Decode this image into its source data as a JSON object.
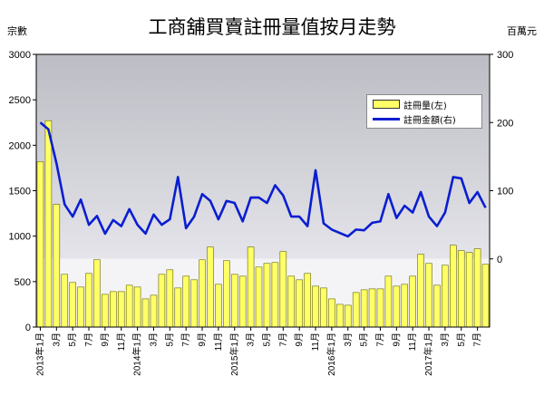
{
  "title": "工商舖買賣註冊量值按月走勢",
  "unit_left": "宗數",
  "unit_right": "百萬元",
  "colors": {
    "bar": "#ffff66",
    "bar_edge": "#666600",
    "line": "#0a1ed0",
    "band_top": "#bcbcc4",
    "band_mid": "#e4e4ea",
    "band_low": "#f4f4f6"
  },
  "legend": {
    "bar_label": "註冊量(左)",
    "line_label": "註冊金額(右)",
    "placement": "top-right"
  },
  "chart_data": {
    "type": "bar",
    "title": "工商舖買賣註冊量值按月走勢",
    "grid": false,
    "x_tick_labels": [
      "2013年1月",
      "3月",
      "5月",
      "7月",
      "9月",
      "11月",
      "2014年1月",
      "3月",
      "5月",
      "7月",
      "9月",
      "11月",
      "2015年1月",
      "3月",
      "5月",
      "7月",
      "9月",
      "11月",
      "2016年1月",
      "3月",
      "5月",
      "7月",
      "9月",
      "11月",
      "2017年1月",
      "3月",
      "5月",
      "7月"
    ],
    "x_tick_every": 2,
    "y_left": {
      "label": "宗數",
      "lim": [
        0,
        3000
      ],
      "ticks": [
        0,
        500,
        1000,
        1500,
        2000,
        2500,
        3000
      ]
    },
    "y_right": {
      "label": "百萬元",
      "lim": [
        -100,
        300
      ],
      "ticks": [
        0,
        100,
        200,
        300
      ]
    },
    "series": [
      {
        "name": "註冊量(左)",
        "type": "bar",
        "axis": "left",
        "values": [
          1820,
          2270,
          1350,
          580,
          490,
          440,
          590,
          740,
          360,
          390,
          390,
          460,
          440,
          310,
          350,
          580,
          630,
          430,
          560,
          520,
          740,
          880,
          470,
          730,
          580,
          560,
          880,
          660,
          700,
          710,
          830,
          560,
          520,
          590,
          450,
          430,
          310,
          250,
          240,
          380,
          410,
          420,
          420,
          560,
          450,
          470,
          560,
          800,
          700,
          460,
          680,
          900,
          840,
          820,
          860,
          690
        ]
      },
      {
        "name": "註冊金額(右)",
        "type": "line",
        "axis": "right",
        "values": [
          200,
          190,
          140,
          80,
          62,
          87,
          50,
          63,
          37,
          57,
          48,
          73,
          50,
          37,
          65,
          50,
          58,
          120,
          45,
          62,
          95,
          85,
          58,
          85,
          82,
          55,
          90,
          90,
          82,
          108,
          93,
          62,
          62,
          48,
          130,
          52,
          43,
          38,
          33,
          43,
          42,
          53,
          55,
          95,
          60,
          78,
          68,
          98,
          62,
          48,
          68,
          120,
          118,
          82,
          98,
          75
        ]
      }
    ]
  }
}
